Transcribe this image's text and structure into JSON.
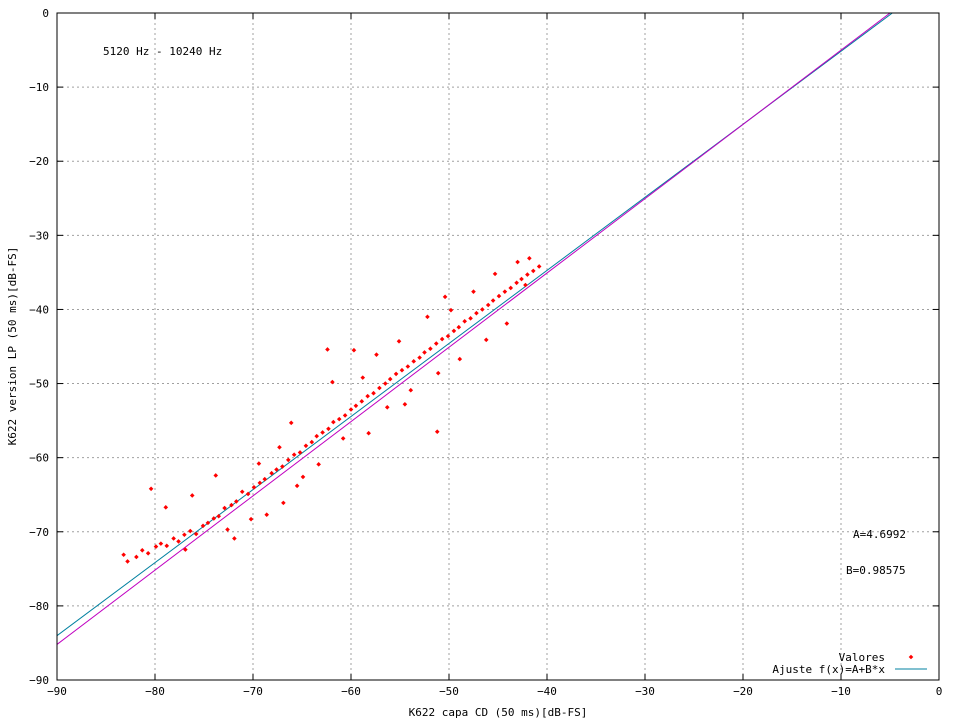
{
  "chart_data": {
    "type": "scatter",
    "title": "",
    "xlabel": "K622 capa CD (50 ms)[dB-FS]",
    "ylabel": "K622 version LP (50 ms)[dB-FS]",
    "xlim": [
      -90,
      0
    ],
    "ylim": [
      -90,
      0
    ],
    "xticks": [
      -90,
      -80,
      -70,
      -60,
      -50,
      -40,
      -30,
      -20,
      -10,
      0
    ],
    "yticks": [
      -90,
      -80,
      -70,
      -60,
      -50,
      -40,
      -30,
      -20,
      -10,
      0
    ],
    "xtick_labels": [
      "−90",
      "−80",
      "−70",
      "−60",
      "−50",
      "−40",
      "−30",
      "−20",
      "−10",
      "0"
    ],
    "ytick_labels": [
      "−90",
      "−80",
      "−70",
      "−60",
      "−50",
      "−40",
      "−30",
      "−20",
      "−10",
      "0"
    ],
    "grid": true,
    "legend_position": "bottom-right",
    "annotations": {
      "band": "5120 Hz - 10240 Hz",
      "param_a": "A=4.6992",
      "param_b": "B=0.98575"
    },
    "fit": {
      "A": 4.6992,
      "B": 0.98575
    },
    "series": [
      {
        "name": "Valores",
        "kind": "points",
        "color": "#ff0000",
        "points": [
          [
            -83.2,
            -73.1
          ],
          [
            -82.8,
            -74.0
          ],
          [
            -81.9,
            -73.4
          ],
          [
            -81.3,
            -72.5
          ],
          [
            -80.7,
            -72.9
          ],
          [
            -79.9,
            -72.0
          ],
          [
            -79.4,
            -71.6
          ],
          [
            -78.8,
            -71.9
          ],
          [
            -78.1,
            -70.9
          ],
          [
            -77.6,
            -71.3
          ],
          [
            -77.0,
            -70.4
          ],
          [
            -76.4,
            -69.9
          ],
          [
            -75.8,
            -70.3
          ],
          [
            -75.1,
            -69.2
          ],
          [
            -74.6,
            -68.8
          ],
          [
            -74.0,
            -68.2
          ],
          [
            -73.5,
            -67.9
          ],
          [
            -72.9,
            -66.8
          ],
          [
            -72.2,
            -66.4
          ],
          [
            -71.7,
            -65.9
          ],
          [
            -71.1,
            -64.6
          ],
          [
            -70.5,
            -64.9
          ],
          [
            -69.9,
            -64.0
          ],
          [
            -69.3,
            -63.4
          ],
          [
            -68.8,
            -62.9
          ],
          [
            -68.1,
            -62.1
          ],
          [
            -67.6,
            -61.6
          ],
          [
            -67.0,
            -61.2
          ],
          [
            -66.4,
            -60.3
          ],
          [
            -65.8,
            -59.6
          ],
          [
            -65.2,
            -59.3
          ],
          [
            -64.6,
            -58.4
          ],
          [
            -64.0,
            -57.9
          ],
          [
            -63.5,
            -57.1
          ],
          [
            -62.9,
            -56.6
          ],
          [
            -62.3,
            -56.1
          ],
          [
            -61.8,
            -55.2
          ],
          [
            -61.2,
            -54.8
          ],
          [
            -60.6,
            -54.3
          ],
          [
            -60.0,
            -53.5
          ],
          [
            -59.5,
            -53.0
          ],
          [
            -58.9,
            -52.4
          ],
          [
            -58.3,
            -51.7
          ],
          [
            -57.7,
            -51.3
          ],
          [
            -57.1,
            -50.6
          ],
          [
            -56.5,
            -50.0
          ],
          [
            -56.0,
            -49.4
          ],
          [
            -55.4,
            -48.7
          ],
          [
            -54.8,
            -48.2
          ],
          [
            -54.2,
            -47.7
          ],
          [
            -53.6,
            -47.0
          ],
          [
            -53.0,
            -46.5
          ],
          [
            -52.5,
            -45.8
          ],
          [
            -51.9,
            -45.3
          ],
          [
            -51.3,
            -44.6
          ],
          [
            -50.7,
            -44.0
          ],
          [
            -50.1,
            -43.6
          ],
          [
            -49.5,
            -42.9
          ],
          [
            -49.0,
            -42.4
          ],
          [
            -48.4,
            -41.6
          ],
          [
            -47.8,
            -41.2
          ],
          [
            -47.2,
            -40.5
          ],
          [
            -46.6,
            -40.0
          ],
          [
            -46.0,
            -39.4
          ],
          [
            -45.5,
            -38.8
          ],
          [
            -44.9,
            -38.2
          ],
          [
            -44.3,
            -37.6
          ],
          [
            -43.7,
            -37.1
          ],
          [
            -43.1,
            -36.4
          ],
          [
            -42.6,
            -35.9
          ],
          [
            -42.0,
            -35.3
          ],
          [
            -41.4,
            -34.8
          ],
          [
            -40.8,
            -34.2
          ],
          [
            -80.4,
            -64.2
          ],
          [
            -78.9,
            -66.7
          ],
          [
            -76.2,
            -65.1
          ],
          [
            -73.8,
            -62.4
          ],
          [
            -71.9,
            -70.9
          ],
          [
            -70.2,
            -68.3
          ],
          [
            -69.4,
            -60.8
          ],
          [
            -68.6,
            -67.7
          ],
          [
            -66.9,
            -66.1
          ],
          [
            -66.1,
            -55.3
          ],
          [
            -64.9,
            -62.6
          ],
          [
            -63.3,
            -60.9
          ],
          [
            -61.9,
            -49.8
          ],
          [
            -60.8,
            -57.4
          ],
          [
            -59.7,
            -45.5
          ],
          [
            -58.2,
            -56.7
          ],
          [
            -57.4,
            -46.1
          ],
          [
            -56.3,
            -53.2
          ],
          [
            -55.1,
            -44.3
          ],
          [
            -53.9,
            -50.9
          ],
          [
            -52.2,
            -41.0
          ],
          [
            -51.1,
            -48.6
          ],
          [
            -50.4,
            -38.3
          ],
          [
            -48.9,
            -46.7
          ],
          [
            -47.5,
            -37.6
          ],
          [
            -46.2,
            -44.1
          ],
          [
            -45.3,
            -35.2
          ],
          [
            -44.1,
            -41.9
          ],
          [
            -43.0,
            -33.6
          ],
          [
            -42.2,
            -36.7
          ],
          [
            -41.8,
            -33.1
          ],
          [
            -51.2,
            -56.5
          ],
          [
            -62.4,
            -45.4
          ],
          [
            -72.6,
            -69.7
          ],
          [
            -67.3,
            -58.6
          ],
          [
            -58.8,
            -49.2
          ],
          [
            -54.5,
            -52.8
          ],
          [
            -49.8,
            -40.1
          ],
          [
            -65.5,
            -63.8
          ],
          [
            -76.9,
            -72.4
          ]
        ]
      },
      {
        "name": "Ajuste f(x)=A+B*x",
        "kind": "line",
        "color": "#0080a0",
        "x": [
          -90,
          -4.767
        ],
        "y": [
          -84.02,
          0
        ]
      },
      {
        "name": "",
        "kind": "line",
        "color": "#c000c0",
        "x": [
          -90,
          -5
        ],
        "y": [
          -85.2,
          0
        ]
      }
    ]
  }
}
